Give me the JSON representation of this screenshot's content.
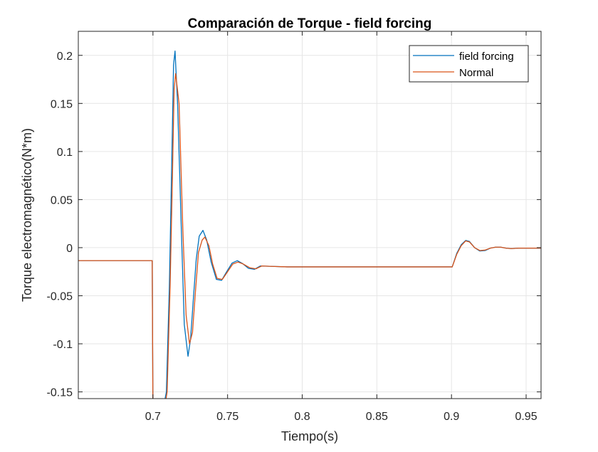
{
  "chart_data": {
    "type": "line",
    "title": "Comparación de Torque - field forcing",
    "xlabel": "Tiempo(s)",
    "ylabel": "Torque electromagnético(N*m)",
    "xlim": [
      0.65,
      0.96
    ],
    "ylim": [
      -0.157,
      0.225
    ],
    "grid": true,
    "legend_position": "top-right",
    "xticks": [
      0.7,
      0.75,
      0.8,
      0.85,
      0.9,
      0.95
    ],
    "xtick_labels": [
      "0.7",
      "0.75",
      "0.8",
      "0.85",
      "0.9",
      "0.95"
    ],
    "yticks": [
      -0.15,
      -0.1,
      -0.05,
      0,
      0.05,
      0.1,
      0.15,
      0.2
    ],
    "ytick_labels": [
      "-0.15",
      "-0.1",
      "-0.05",
      "0",
      "0.05",
      "0.1",
      "0.15",
      "0.2"
    ],
    "series": [
      {
        "name": "field forcing",
        "color": "#0072BD",
        "x": [
          0.65,
          0.6995,
          0.7,
          0.7008,
          0.7047,
          0.7065,
          0.709,
          0.711,
          0.7125,
          0.7138,
          0.7148,
          0.7165,
          0.719,
          0.721,
          0.7235,
          0.7252,
          0.727,
          0.729,
          0.731,
          0.7335,
          0.736,
          0.739,
          0.7425,
          0.746,
          0.749,
          0.753,
          0.7565,
          0.76,
          0.764,
          0.768,
          0.772,
          0.78,
          0.79,
          0.8,
          0.85,
          0.8995,
          0.9005,
          0.9035,
          0.9065,
          0.9095,
          0.912,
          0.9155,
          0.919,
          0.9225,
          0.926,
          0.9295,
          0.933,
          0.9365,
          0.94,
          0.945,
          0.95,
          0.955,
          0.96
        ],
        "y": [
          -0.0135,
          -0.0135,
          -0.17,
          -0.19,
          -0.19,
          -0.17,
          -0.15,
          -0.04,
          0.08,
          0.19,
          0.2045,
          0.15,
          0.02,
          -0.08,
          -0.113,
          -0.095,
          -0.055,
          -0.012,
          0.012,
          0.018,
          0.008,
          -0.015,
          -0.033,
          -0.034,
          -0.026,
          -0.016,
          -0.0135,
          -0.0165,
          -0.0215,
          -0.0225,
          -0.019,
          -0.0195,
          -0.02,
          -0.02,
          -0.02,
          -0.02,
          -0.02,
          -0.006,
          0.003,
          0.0075,
          0.0065,
          0.0,
          -0.0035,
          -0.003,
          -0.0005,
          0.0005,
          0.0005,
          -0.0005,
          -0.001,
          -0.0005,
          -0.0005,
          -0.0005,
          -0.0005
        ]
      },
      {
        "name": "Normal",
        "color": "#D95319",
        "x": [
          0.65,
          0.6995,
          0.7,
          0.7008,
          0.7047,
          0.7075,
          0.7095,
          0.7115,
          0.713,
          0.7142,
          0.7152,
          0.7175,
          0.72,
          0.7222,
          0.7245,
          0.7265,
          0.7285,
          0.7305,
          0.733,
          0.7348,
          0.7375,
          0.74,
          0.743,
          0.7465,
          0.75,
          0.7535,
          0.757,
          0.7605,
          0.765,
          0.769,
          0.773,
          0.78,
          0.79,
          0.8,
          0.85,
          0.8995,
          0.9005,
          0.9035,
          0.9065,
          0.9095,
          0.912,
          0.9155,
          0.919,
          0.9225,
          0.926,
          0.9295,
          0.933,
          0.9365,
          0.94,
          0.945,
          0.95,
          0.955,
          0.96
        ],
        "y": [
          -0.0135,
          -0.0135,
          -0.17,
          -0.19,
          -0.19,
          -0.17,
          -0.15,
          -0.04,
          0.07,
          0.165,
          0.181,
          0.15,
          0.02,
          -0.07,
          -0.1,
          -0.088,
          -0.045,
          -0.005,
          0.008,
          0.011,
          0.002,
          -0.017,
          -0.032,
          -0.033,
          -0.025,
          -0.017,
          -0.015,
          -0.017,
          -0.021,
          -0.022,
          -0.019,
          -0.0195,
          -0.02,
          -0.02,
          -0.02,
          -0.02,
          -0.02,
          -0.007,
          0.002,
          0.007,
          0.006,
          0.0,
          -0.003,
          -0.0025,
          -0.0005,
          0.0005,
          0.0005,
          -0.0005,
          -0.001,
          -0.0005,
          -0.0005,
          -0.0005,
          -0.0005
        ]
      }
    ]
  }
}
